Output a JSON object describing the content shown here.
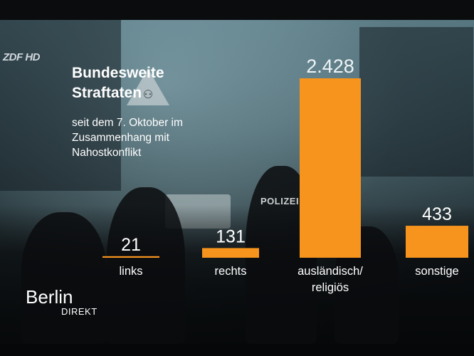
{
  "broadcast": {
    "channel_logo": "ZDF HD",
    "program_name": "Berlin",
    "program_sub": "DIREKT"
  },
  "scene": {
    "police_text": "POLIZEI"
  },
  "chart_data": {
    "type": "bar",
    "title": "Bundesweite Straftaten",
    "subtitle": "seit dem 7. Oktober im Zusammenhang mit Nahostkonflikt",
    "categories": [
      "links",
      "rechts",
      "ausländisch/ religiös",
      "sonstige"
    ],
    "values": [
      21,
      131,
      2428,
      433
    ],
    "value_labels": [
      "21",
      "131",
      "2.428",
      "433"
    ],
    "bar_color": "#f7941d",
    "xlabel": "",
    "ylabel": "",
    "grid": false,
    "legend": "none"
  }
}
